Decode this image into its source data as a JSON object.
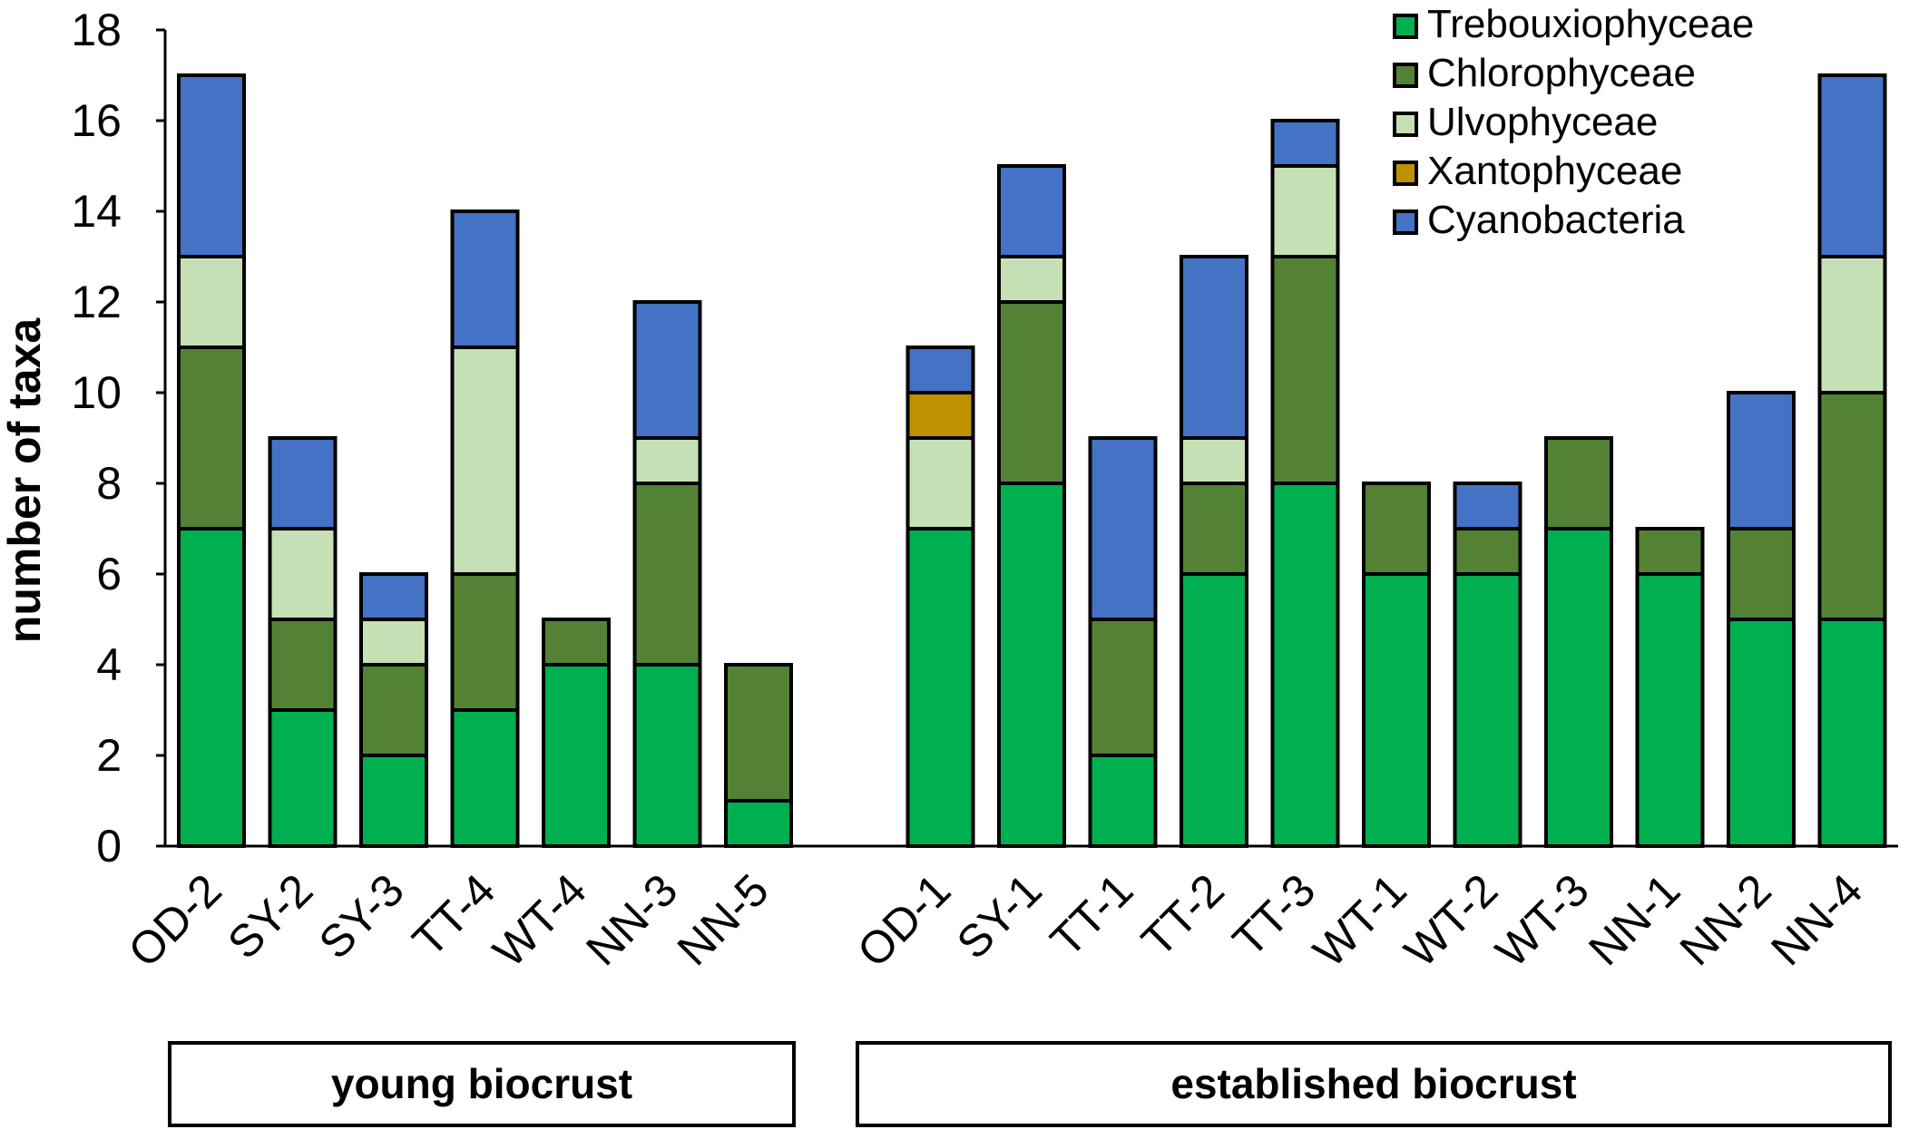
{
  "chart_data": {
    "type": "bar",
    "stacked": true,
    "title": "",
    "xlabel": "",
    "ylabel": "number of taxa",
    "ylim": [
      0,
      18
    ],
    "yticks": [
      0,
      2,
      4,
      6,
      8,
      10,
      12,
      14,
      16,
      18
    ],
    "grid": false,
    "legend_position": "top-right",
    "categories": [
      "OD-2",
      "SY-2",
      "SY-3",
      "TT-4",
      "WT-4",
      "NN-3",
      "NN-5",
      "OD-1",
      "SY-1",
      "TT-1",
      "TT-2",
      "TT-3",
      "WT-1",
      "WT-2",
      "WT-3",
      "NN-1",
      "NN-2",
      "NN-4"
    ],
    "groups": [
      {
        "label": "young biocrust",
        "categories": [
          "OD-2",
          "SY-2",
          "SY-3",
          "TT-4",
          "WT-4",
          "NN-3",
          "NN-5"
        ]
      },
      {
        "label": "established biocrust",
        "categories": [
          "OD-1",
          "SY-1",
          "TT-1",
          "TT-2",
          "TT-3",
          "WT-1",
          "WT-2",
          "WT-3",
          "NN-1",
          "NN-2",
          "NN-4"
        ]
      }
    ],
    "series": [
      {
        "name": "Trebouxiophyceae",
        "color": "#00b050",
        "values": [
          7,
          3,
          2,
          3,
          4,
          4,
          1,
          7,
          8,
          2,
          6,
          8,
          6,
          6,
          7,
          6,
          5,
          5
        ]
      },
      {
        "name": "Chlorophyceae",
        "color": "#548235",
        "values": [
          4,
          2,
          2,
          3,
          1,
          4,
          3,
          0,
          4,
          3,
          2,
          5,
          2,
          1,
          2,
          1,
          2,
          5
        ]
      },
      {
        "name": "Ulvophyceae",
        "color": "#c5e0b4",
        "values": [
          2,
          2,
          1,
          5,
          0,
          1,
          0,
          2,
          1,
          0,
          1,
          2,
          0,
          0,
          0,
          0,
          0,
          3
        ]
      },
      {
        "name": "Xantophyceae",
        "color": "#bf9000",
        "values": [
          0,
          0,
          0,
          0,
          0,
          0,
          0,
          1,
          0,
          0,
          0,
          0,
          0,
          0,
          0,
          0,
          0,
          0
        ]
      },
      {
        "name": "Cyanobacteria",
        "color": "#4472c4",
        "values": [
          4,
          2,
          1,
          3,
          0,
          3,
          0,
          1,
          2,
          4,
          4,
          1,
          0,
          1,
          0,
          0,
          3,
          4
        ]
      }
    ]
  }
}
